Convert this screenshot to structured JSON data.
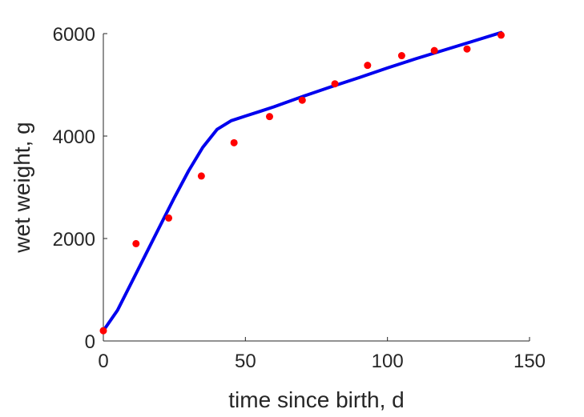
{
  "chart_data": {
    "type": "scatter",
    "title": "",
    "xlabel": "time since birth, d",
    "ylabel": "wet weight, g",
    "xlim": [
      0,
      150
    ],
    "ylim": [
      0,
      6000
    ],
    "xticks": [
      0,
      50,
      100,
      150
    ],
    "yticks": [
      0,
      2000,
      4000,
      6000
    ],
    "xtick_labels": [
      "0",
      "50",
      "100",
      "150"
    ],
    "ytick_labels": [
      "0",
      "2000",
      "4000",
      "6000"
    ],
    "grid": false,
    "legend": "none",
    "series": [
      {
        "kind": "scatter",
        "color": "#ff0000",
        "x": [
          0,
          11.5,
          23,
          34.5,
          46,
          58.5,
          70,
          81.5,
          93,
          105,
          116.5,
          128,
          140
        ],
        "y": [
          200,
          1900,
          2400,
          3220,
          3870,
          4380,
          4700,
          5020,
          5380,
          5570,
          5670,
          5700,
          5970
        ]
      },
      {
        "kind": "line",
        "color": "#0000ee",
        "x": [
          0,
          5,
          10,
          15,
          20,
          25,
          30,
          35,
          40,
          45,
          50,
          55,
          60,
          70,
          80,
          90,
          100,
          110,
          120,
          130,
          140
        ],
        "y": [
          200,
          600,
          1150,
          1700,
          2250,
          2800,
          3320,
          3780,
          4130,
          4300,
          4390,
          4480,
          4570,
          4770,
          4960,
          5140,
          5330,
          5510,
          5680,
          5850,
          6020
        ]
      }
    ]
  }
}
